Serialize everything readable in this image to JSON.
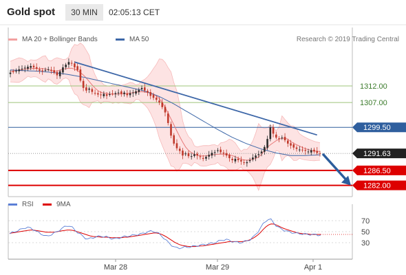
{
  "header": {
    "title": "Gold spot",
    "timeframe": "30 MIN",
    "time": "02:05:13 CET"
  },
  "legend": {
    "ma20_bb": "MA 20 + Bollinger Bands",
    "ma50": "MA 50",
    "credit": "Research © 2019 Trading Central",
    "rsi": "RSI",
    "ma9": "9MA"
  },
  "colors": {
    "up": "#2b2b2b",
    "down": "#c0392b",
    "ma20": "#e87a7a",
    "band_fill": "#fde3e3",
    "ma50": "#3d67a8",
    "support_red": "#dd0000",
    "green_level": "#9cc47a",
    "blue_level": "#2f5f9e",
    "arrow": "#2c5d9c",
    "rsi": "#5b7fd6",
    "rsi_ma": "#dd0000"
  },
  "chart_data": [
    {
      "type": "candlestick",
      "price_range": [
        1278.6,
        1323.4
      ],
      "x_ticks": [
        "Mar 28",
        "Mar 29",
        "Apr 1"
      ],
      "levels": [
        {
          "label": "1312.00",
          "value": 1312.0,
          "kind": "resistance"
        },
        {
          "label": "1307.00",
          "value": 1307.0,
          "kind": "resistance"
        },
        {
          "label": "1299.50",
          "value": 1299.5,
          "kind": "pivot"
        },
        {
          "label": "1291.63",
          "value": 1291.63,
          "kind": "last"
        },
        {
          "label": "1286.50",
          "value": 1286.5,
          "kind": "support"
        },
        {
          "label": "1282.00",
          "value": 1282.0,
          "kind": "support"
        }
      ],
      "last_price": 1291.63,
      "anchors": [
        1316.0,
        1316.3,
        1316.6,
        1317.0,
        1317.2,
        1317.5,
        1317.8,
        1318.0,
        1317.6,
        1317.2,
        1316.6,
        1316.4,
        1316.8,
        1317.0,
        1316.6,
        1316.0,
        1315.2,
        1316.4,
        1317.6,
        1318.4,
        1319.2,
        1318.8,
        1317.6,
        1316.8,
        1313.6,
        1311.4,
        1310.6,
        1311.2,
        1310.2,
        1309.8,
        1309.4,
        1309.2,
        1309.6,
        1309.0,
        1309.5,
        1309.6,
        1309.8,
        1310.0,
        1309.6,
        1310.0,
        1309.2,
        1309.8,
        1310.0,
        1310.4,
        1310.8,
        1311.4,
        1310.6,
        1310.0,
        1309.0,
        1308.4,
        1307.8,
        1307.0,
        1305.6,
        1304.0,
        1300.8,
        1297.0,
        1294.6,
        1293.2,
        1292.4,
        1291.0,
        1291.6,
        1290.8,
        1290.8,
        1291.4,
        1291.0,
        1290.6,
        1290.0,
        1290.6,
        1291.2,
        1291.8,
        1292.0,
        1292.6,
        1292.0,
        1291.6,
        1291.0,
        1290.2,
        1289.6,
        1290.0,
        1289.6,
        1289.2,
        1288.8,
        1289.0,
        1289.6,
        1290.4,
        1291.0,
        1291.4,
        1292.2,
        1293.6,
        1296.0,
        1299.5,
        1297.6,
        1296.4,
        1296.0,
        1296.4,
        1295.6,
        1294.6,
        1294.0,
        1293.4,
        1293.0,
        1292.8,
        1292.6,
        1292.4,
        1292.2,
        1292.6,
        1292.2,
        1291.8,
        1291.63
      ],
      "ma50_anchors": [
        1316.8,
        1316.6,
        1316.4,
        1316.0,
        1315.4,
        1314.6,
        1313.6,
        1312.6,
        1311.6,
        1310.6,
        1309.0,
        1306.8,
        1304.2,
        1301.6,
        1299.0,
        1296.6,
        1294.6,
        1293.0,
        1291.8,
        1291.0,
        1291.0,
        1291.2
      ],
      "trendline": {
        "from": {
          "index": 22,
          "value": 1319.2
        },
        "to": {
          "index": 105,
          "value": 1297.2
        }
      },
      "projection_arrow": {
        "from": 1291.5,
        "to": 1282.0
      }
    },
    {
      "type": "line",
      "name": "RSI",
      "y_ticks": [
        70,
        50,
        30
      ],
      "rsi_anchors": [
        46,
        49,
        51,
        53,
        56,
        58,
        57,
        54,
        50,
        47,
        44,
        41,
        44,
        47,
        50,
        54,
        58,
        61,
        60,
        55,
        49,
        45,
        40,
        36,
        38,
        40,
        41,
        42,
        41,
        40,
        38,
        37,
        38,
        40,
        41,
        42,
        43,
        44,
        45,
        46,
        48,
        50,
        51,
        50,
        47,
        42,
        36,
        30,
        25,
        21,
        20,
        21,
        22,
        22,
        23,
        24,
        25,
        26,
        27,
        28,
        29,
        31,
        33,
        35,
        36,
        34,
        32,
        31,
        30,
        31,
        33,
        35,
        40,
        46,
        55,
        64,
        71,
        74,
        67,
        60,
        56,
        53,
        51,
        49,
        48,
        47,
        46,
        46,
        45,
        45,
        45,
        44,
        44
      ],
      "ma9_anchors": [
        47,
        48,
        49,
        50,
        51,
        52,
        53,
        53,
        52,
        51,
        50,
        49,
        49,
        49,
        50,
        51,
        52,
        53,
        53,
        52,
        50,
        48,
        46,
        44,
        42,
        41,
        41,
        40,
        40,
        40,
        39,
        39,
        39,
        39,
        40,
        40,
        41,
        42,
        43,
        44,
        45,
        46,
        47,
        48,
        47,
        45,
        42,
        38,
        34,
        30,
        27,
        25,
        24,
        23,
        23,
        23,
        24,
        24,
        25,
        26,
        27,
        28,
        29,
        30,
        31,
        32,
        32,
        32,
        32,
        32,
        33,
        35,
        38,
        42,
        47,
        54,
        60,
        64,
        64,
        62,
        59,
        56,
        54,
        52,
        50,
        48,
        47,
        46,
        46,
        45,
        45,
        45,
        45
      ]
    }
  ]
}
